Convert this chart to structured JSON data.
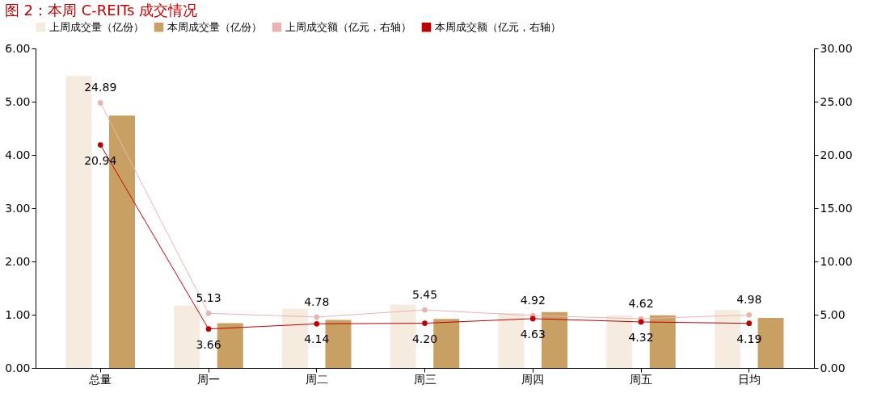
{
  "chart_data": {
    "type": "bar",
    "title": "图 2：本周 C-REITs 成交情况",
    "categories": [
      "总量",
      "周一",
      "周二",
      "周三",
      "周四",
      "周五",
      "日均"
    ],
    "series": [
      {
        "name": "上周成交量（亿份）",
        "color": "#f5ebdf",
        "values": [
          5.48,
          1.17,
          1.11,
          1.19,
          1.03,
          0.99,
          1.09
        ]
      },
      {
        "name": "本周成交量（亿份）",
        "color": "#c9a063",
        "values": [
          4.74,
          0.84,
          0.9,
          0.92,
          1.05,
          0.99,
          0.94
        ]
      },
      {
        "name": "上周成交额（亿元，右轴）",
        "type": "line",
        "axis": "y2",
        "color": "#eab3b3",
        "values": [
          24.89,
          5.13,
          4.78,
          5.45,
          4.92,
          4.62,
          4.98
        ],
        "value_labels": [
          "24.89",
          "5.13",
          "4.78",
          "5.45",
          "4.92",
          "4.62",
          "4.98"
        ]
      },
      {
        "name": "本周成交额（亿元，右轴）",
        "type": "line",
        "axis": "y2",
        "color": "#c00000",
        "values": [
          20.94,
          3.66,
          4.14,
          4.2,
          4.63,
          4.32,
          4.19
        ],
        "value_labels": [
          "20.94",
          "3.66",
          "4.14",
          "4.20",
          "4.63",
          "4.32",
          "4.19"
        ]
      }
    ],
    "ylim": [
      0,
      6
    ],
    "yticks": [
      {
        "value": 0,
        "label": "0.00"
      },
      {
        "value": 1,
        "label": "1.00"
      },
      {
        "value": 2,
        "label": "2.00"
      },
      {
        "value": 3,
        "label": "3.00"
      },
      {
        "value": 4,
        "label": "4.00"
      },
      {
        "value": 5,
        "label": "5.00"
      },
      {
        "value": 6,
        "label": "6.00"
      }
    ],
    "y2lim": [
      0,
      30
    ],
    "y2ticks": [
      {
        "value": 0,
        "label": "0.00"
      },
      {
        "value": 5,
        "label": "5.00"
      },
      {
        "value": 10,
        "label": "10.00"
      },
      {
        "value": 15,
        "label": "15.00"
      },
      {
        "value": 20,
        "label": "20.00"
      },
      {
        "value": 25,
        "label": "25.00"
      },
      {
        "value": 30,
        "label": "30.00"
      }
    ],
    "legend": "top",
    "grid": false,
    "marker": "circle"
  }
}
